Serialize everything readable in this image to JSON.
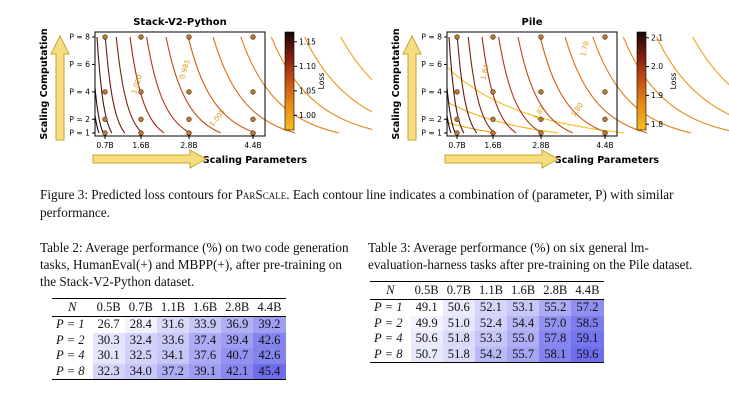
{
  "figure": {
    "caption_prefix": "Figure 3: Predicted loss contours for ",
    "caption_method": "ParScale",
    "caption_suffix": ". Each contour line indicates a combination of (parameter, P) with similar performance."
  },
  "chart_data": [
    {
      "type": "contour",
      "title": "Stack-V2-Python",
      "xlabel": "Scaling Parameters",
      "ylabel": "Scaling Computation",
      "x_ticks": [
        "0.7B",
        "1.6B",
        "2.8B",
        "4.4B"
      ],
      "y_ticks": [
        "P = 1",
        "P = 2",
        "P = 4",
        "P = 6",
        "P = 8"
      ],
      "colorbar_label": "Loss",
      "colorbar_ticks": [
        "1.15",
        "1.10",
        "1.05",
        "1.00"
      ],
      "colorbar_range": [
        0.97,
        1.17
      ],
      "contour_labels": [
        "1.020",
        "0.985",
        "1.005"
      ],
      "points": [
        {
          "x": "0.7B",
          "y": [
            1,
            2,
            4,
            8
          ]
        },
        {
          "x": "1.6B",
          "y": [
            1,
            2,
            4,
            8
          ]
        },
        {
          "x": "2.8B",
          "y": [
            1,
            2,
            4,
            8
          ]
        },
        {
          "x": "4.4B",
          "y": [
            1,
            2,
            4,
            8
          ]
        }
      ]
    },
    {
      "type": "contour",
      "title": "Pile",
      "xlabel": "Scaling Parameters",
      "ylabel": "Scaling Computation",
      "x_ticks": [
        "0.7B",
        "1.6B",
        "2.8B",
        "4.4B"
      ],
      "y_ticks": [
        "P = 1",
        "P = 2",
        "P = 4",
        "P = 6",
        "P = 8"
      ],
      "colorbar_label": "Loss",
      "colorbar_ticks": [
        "2.1",
        "2.0",
        "1.9",
        "1.8"
      ],
      "colorbar_range": [
        1.78,
        2.12
      ],
      "contour_labels": [
        "1.84",
        "1.78",
        "1.82",
        "1.80"
      ],
      "points": [
        {
          "x": "0.7B",
          "y": [
            1,
            2,
            4,
            8
          ]
        },
        {
          "x": "1.6B",
          "y": [
            1,
            2,
            4,
            8
          ]
        },
        {
          "x": "2.8B",
          "y": [
            1,
            2,
            4,
            8
          ]
        },
        {
          "x": "4.4B",
          "y": [
            1,
            2,
            4,
            8
          ]
        }
      ]
    }
  ],
  "table2": {
    "caption": "Table 2: Average performance (%) on two code generation tasks, HumanEval(+) and MBPP(+), after pre-training on the Stack-V2-Python dataset.",
    "columns": [
      "N",
      "0.5B",
      "0.7B",
      "1.1B",
      "1.6B",
      "2.8B",
      "4.4B"
    ],
    "rows": [
      {
        "label": "P = 1",
        "values": [
          "26.7",
          "28.4",
          "31.6",
          "33.9",
          "36.9",
          "39.2"
        ]
      },
      {
        "label": "P = 2",
        "values": [
          "30.3",
          "32.4",
          "33.6",
          "37.4",
          "39.4",
          "42.6"
        ]
      },
      {
        "label": "P = 4",
        "values": [
          "30.1",
          "32.5",
          "34.1",
          "37.6",
          "40.7",
          "42.6"
        ]
      },
      {
        "label": "P = 8",
        "values": [
          "32.3",
          "34.0",
          "37.2",
          "39.1",
          "42.1",
          "45.4"
        ]
      }
    ]
  },
  "table3": {
    "caption": "Table 3: Average performance (%) on six general lm-evaluation-harness tasks after pre-training on the Pile dataset.",
    "columns": [
      "N",
      "0.5B",
      "0.7B",
      "1.1B",
      "1.6B",
      "2.8B",
      "4.4B"
    ],
    "rows": [
      {
        "label": "P = 1",
        "values": [
          "49.1",
          "50.6",
          "52.1",
          "53.1",
          "55.2",
          "57.2"
        ]
      },
      {
        "label": "P = 2",
        "values": [
          "49.9",
          "51.0",
          "52.4",
          "54.4",
          "57.0",
          "58.5"
        ]
      },
      {
        "label": "P = 4",
        "values": [
          "50.6",
          "51.8",
          "53.3",
          "55.0",
          "57.8",
          "59.1"
        ]
      },
      {
        "label": "P = 8",
        "values": [
          "50.7",
          "51.8",
          "54.2",
          "55.7",
          "58.1",
          "59.6"
        ]
      }
    ]
  }
}
